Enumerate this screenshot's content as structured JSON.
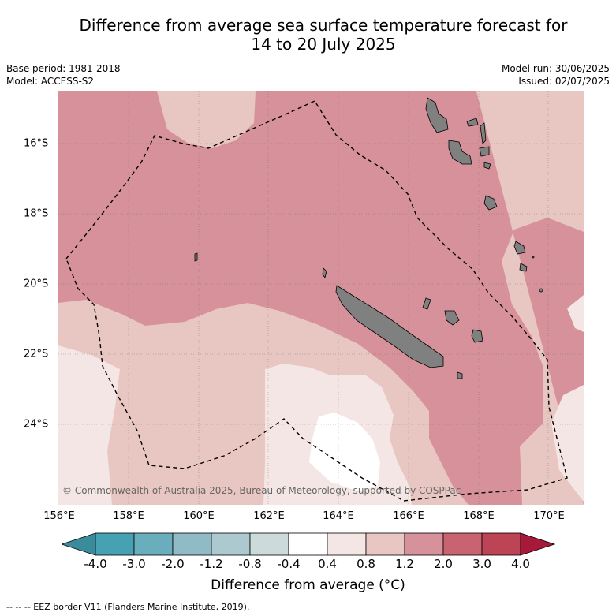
{
  "title_line1": "Difference from average sea surface temperature forecast for",
  "title_line2": "14 to 20 July 2025",
  "base_period": "Base period: 1981-2018",
  "model": "Model: ACCESS-S2",
  "model_run": "Model run: 30/06/2025",
  "issued": "Issued: 02/07/2025",
  "x_ticks": [
    "156°E",
    "158°E",
    "160°E",
    "162°E",
    "164°E",
    "166°E",
    "168°E",
    "170°E"
  ],
  "y_ticks": [
    "16°S",
    "18°S",
    "20°S",
    "22°S",
    "24°S"
  ],
  "colorbar": {
    "labels": [
      "-4.0",
      "-3.0",
      "-2.0",
      "-1.2",
      "-0.8",
      "-0.4",
      "0.4",
      "0.8",
      "1.2",
      "2.0",
      "3.0",
      "4.0"
    ],
    "colors": [
      "#3a8c9c",
      "#46a2b2",
      "#6aadbc",
      "#8fbac6",
      "#abc9cf",
      "#ccdada",
      "#ffffff",
      "#f4e6e4",
      "#e8c6c1",
      "#d6919a",
      "#c9636f",
      "#bc4454",
      "#a81838"
    ],
    "title": "Difference from average (°C)"
  },
  "copyright": "© Commonwealth of Australia 2025, Bureau of Meteorology, supported by COSPPac",
  "footer": "--  --  -- EEZ border V11 (Flanders Marine Institute, 2019)."
}
